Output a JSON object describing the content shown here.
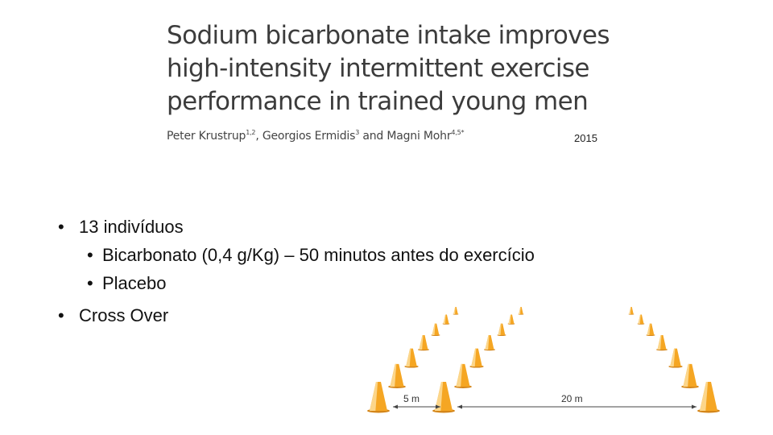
{
  "paper": {
    "title_lines": [
      "Sodium bicarbonate intake improves",
      "high-intensity intermittent exercise",
      "performance in trained young men"
    ],
    "authors": [
      {
        "name": "Peter Krustrup",
        "sup": "1,2",
        "sep": ", "
      },
      {
        "name": "Georgios Ermidis",
        "sup": "3",
        "sep": " and "
      },
      {
        "name": "Magni Mohr",
        "sup": "4,5*",
        "sep": ""
      }
    ],
    "year": "2015"
  },
  "bullets": [
    {
      "text": "13 indivíduos",
      "level": 1
    },
    {
      "text": "Bicarbonato (0,4 g/Kg) – 50 minutos antes do exercício",
      "level": 2
    },
    {
      "text": "Placebo",
      "level": 2
    },
    {
      "text": "Cross Over",
      "level": 1
    }
  ],
  "figure": {
    "label_5m": "5 m",
    "label_20m": "20 m",
    "cone_color": "#f5a623"
  }
}
